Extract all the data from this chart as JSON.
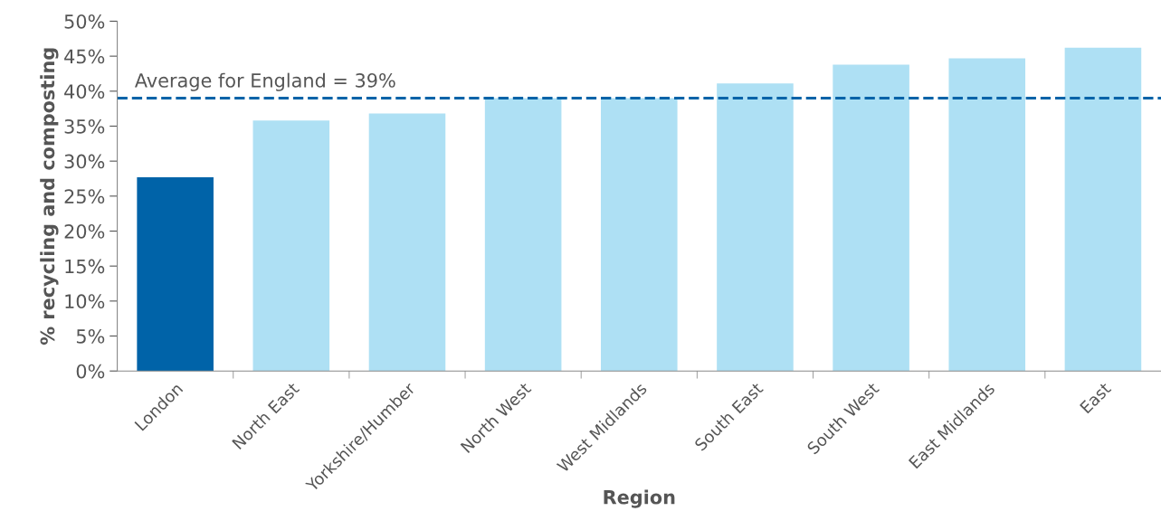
{
  "chart_data": {
    "type": "bar",
    "xlabel": "Region",
    "ylabel": "% recycling and composting",
    "categories": [
      "London",
      "North East",
      "Yorkshire/Humber",
      "North West",
      "West Midlands",
      "South East",
      "South West",
      "East Midlands",
      "East"
    ],
    "values": [
      27.7,
      35.8,
      36.8,
      39.0,
      39.0,
      41.1,
      43.8,
      44.7,
      46.2
    ],
    "colors": [
      "#0063a8",
      "#aee0f4",
      "#aee0f4",
      "#aee0f4",
      "#aee0f4",
      "#aee0f4",
      "#aee0f4",
      "#aee0f4",
      "#aee0f4"
    ],
    "ylim": [
      0,
      50
    ],
    "yticks": [
      {
        "value": 0,
        "label": "0%"
      },
      {
        "value": 5,
        "label": "5%"
      },
      {
        "value": 10,
        "label": "10%"
      },
      {
        "value": 15,
        "label": "15%"
      },
      {
        "value": 20,
        "label": "20%"
      },
      {
        "value": 25,
        "label": "25%"
      },
      {
        "value": 30,
        "label": "30%"
      },
      {
        "value": 35,
        "label": "35%"
      },
      {
        "value": 40,
        "label": "40%"
      },
      {
        "value": 45,
        "label": "45%"
      },
      {
        "value": 50,
        "label": "50%"
      }
    ],
    "ref_lines": [
      {
        "axis": "y",
        "value": 39,
        "label": "Average for England = 39%",
        "color": "#0063a8",
        "line_style": "dashed"
      }
    ],
    "grid": false,
    "legend": false
  }
}
